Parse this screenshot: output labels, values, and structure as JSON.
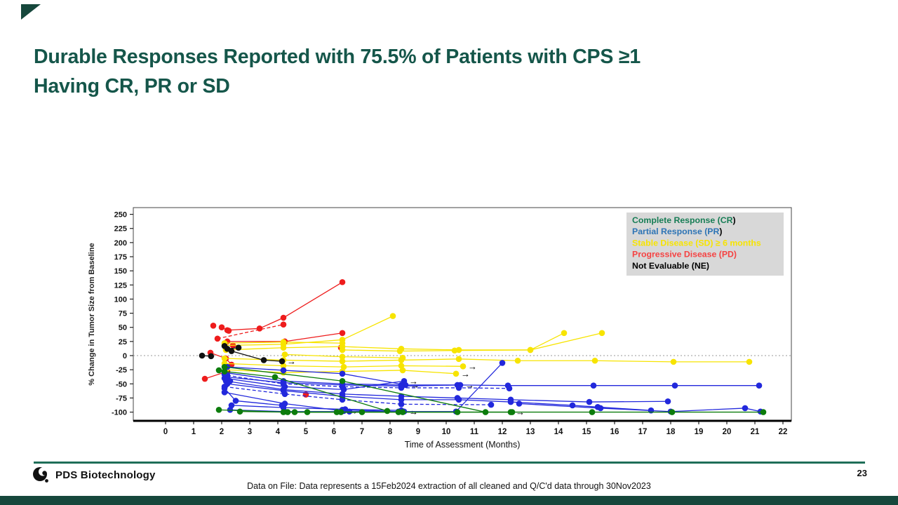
{
  "slide": {
    "title_lines": [
      "Durable Responses Reported with 75.5% of Patients with CPS ≥1",
      "Having CR, PR or SD"
    ],
    "title_color": "#15564a",
    "logo_text": "PDS Biotechnology",
    "footnote": "Data on File: Data represents a 15Feb2024 extraction of all cleaned and Q/C'd data through 30Nov2023",
    "page_number": "23",
    "accent_color": "#16473c"
  },
  "chart_data": {
    "type": "line",
    "subtype": "spider-plot",
    "title": "",
    "xlabel": "Time of Assessment (Months)",
    "ylabel": "% Change in Tumor Size from Baseline",
    "xlim": [
      0,
      22
    ],
    "xstep": 1,
    "ylim": [
      -100,
      250
    ],
    "ystep": 25,
    "zero_reference_line": true,
    "grid": false,
    "legend": {
      "position": "top-right",
      "bg": "#d8d8d8",
      "entries": [
        {
          "label": "Complete Response (CR",
          "suffix": ")",
          "color": "#177d55"
        },
        {
          "label": "Partial Response (PR",
          "suffix": ")",
          "color": "#2d74b5"
        },
        {
          "label": "Stable Disease (SD) ≥ 6 months",
          "suffix": "",
          "color": "#f7e400"
        },
        {
          "label": "Progressive Disease (PD)",
          "suffix": "",
          "color": "#f54242"
        },
        {
          "label": "Not Evaluable (NE)",
          "suffix": "",
          "color": "#000000"
        }
      ]
    },
    "colors": {
      "CR": "#0c7c0c",
      "PR": "#2228dc",
      "SD": "#f7e400",
      "PD": "#ee1c1c",
      "NE": "#101010"
    },
    "series": [
      {
        "id": "PD-1",
        "response": "PD",
        "points": [
          [
            2.2,
            45
          ],
          [
            3.35,
            48
          ],
          [
            4.2,
            67
          ],
          [
            6.3,
            130
          ]
        ]
      },
      {
        "id": "PD-2",
        "response": "PD",
        "dash": true,
        "points": [
          [
            1.85,
            30
          ],
          [
            4.2,
            55
          ]
        ]
      },
      {
        "id": "PD-3",
        "response": "PD",
        "points": [
          [
            2.2,
            25
          ],
          [
            4.25,
            25
          ],
          [
            6.3,
            40
          ]
        ]
      },
      {
        "id": "PD-4",
        "response": "PD",
        "points": [
          [
            2.0,
            50
          ],
          [
            2.25,
            44
          ]
        ]
      },
      {
        "id": "PD-5",
        "response": "PD",
        "points": [
          [
            1.7,
            53
          ]
        ]
      },
      {
        "id": "PD-6",
        "response": "PD",
        "points": [
          [
            1.6,
            5
          ],
          [
            2.15,
            -5
          ],
          [
            2.35,
            -16
          ]
        ]
      },
      {
        "id": "PD-7",
        "response": "PD",
        "points": [
          [
            1.4,
            -41
          ],
          [
            2.2,
            -28
          ]
        ]
      },
      {
        "id": "PD-8",
        "response": "PD",
        "points": [
          [
            6.25,
            14
          ]
        ]
      },
      {
        "id": "PD-9",
        "response": "PD",
        "points": [
          [
            5.0,
            -69
          ]
        ]
      },
      {
        "id": "PD-10",
        "response": "PD",
        "points": [
          [
            2.4,
            18
          ]
        ]
      },
      {
        "id": "SD-1",
        "response": "SD",
        "points": [
          [
            2.1,
            18
          ],
          [
            4.2,
            20
          ],
          [
            6.3,
            28
          ],
          [
            8.1,
            70
          ]
        ]
      },
      {
        "id": "SD-2",
        "response": "SD",
        "points": [
          [
            2.15,
            10
          ],
          [
            4.2,
            14
          ],
          [
            6.3,
            16
          ],
          [
            8.4,
            12
          ],
          [
            10.45,
            10
          ],
          [
            13.0,
            10
          ],
          [
            14.2,
            40
          ]
        ]
      },
      {
        "id": "SD-3",
        "response": "SD",
        "points": [
          [
            6.3,
            10
          ],
          [
            8.35,
            8
          ],
          [
            10.3,
            9
          ],
          [
            13.0,
            10
          ],
          [
            15.55,
            40
          ]
        ]
      },
      {
        "id": "SD-4",
        "response": "SD",
        "points": [
          [
            2.1,
            -5
          ],
          [
            4.2,
            -8
          ],
          [
            6.3,
            -10
          ],
          [
            8.4,
            -8
          ],
          [
            10.45,
            -6
          ],
          [
            12.55,
            -9
          ],
          [
            15.3,
            -9
          ],
          [
            18.1,
            -11
          ],
          [
            20.8,
            -11
          ]
        ]
      },
      {
        "id": "SD-5",
        "response": "SD",
        "arrow": true,
        "points": [
          [
            2.1,
            -14
          ],
          [
            4.2,
            -18
          ],
          [
            6.35,
            -20
          ],
          [
            8.4,
            -18
          ],
          [
            10.6,
            -19
          ]
        ]
      },
      {
        "id": "SD-6",
        "response": "SD",
        "arrow": true,
        "points": [
          [
            2.15,
            -25
          ],
          [
            4.2,
            -30
          ],
          [
            6.3,
            -28
          ],
          [
            8.45,
            -26
          ],
          [
            10.35,
            -32
          ]
        ]
      },
      {
        "id": "SD-7",
        "response": "SD",
        "points": [
          [
            2.1,
            22
          ],
          [
            4.2,
            24
          ],
          [
            6.3,
            22
          ]
        ]
      },
      {
        "id": "SD-8",
        "response": "SD",
        "points": [
          [
            4.25,
            2
          ],
          [
            6.3,
            -2
          ],
          [
            8.45,
            -4
          ]
        ]
      },
      {
        "id": "PR-1",
        "response": "PR",
        "points": [
          [
            2.1,
            -30
          ],
          [
            4.2,
            -45
          ],
          [
            6.3,
            -50
          ],
          [
            8.4,
            -52
          ],
          [
            10.4,
            -52
          ],
          [
            12.2,
            -53
          ],
          [
            15.25,
            -53
          ],
          [
            18.15,
            -53
          ],
          [
            21.15,
            -53
          ]
        ]
      },
      {
        "id": "PR-2",
        "response": "PR",
        "dash": true,
        "points": [
          [
            2.2,
            -35
          ],
          [
            4.2,
            -50
          ],
          [
            6.3,
            -55
          ],
          [
            8.4,
            -57
          ],
          [
            10.45,
            -57
          ],
          [
            12.25,
            -58
          ]
        ]
      },
      {
        "id": "PR-3",
        "response": "PR",
        "arrow": true,
        "points": [
          [
            2.1,
            -40
          ],
          [
            4.25,
            -55
          ],
          [
            6.35,
            -60
          ],
          [
            8.5,
            -45
          ]
        ]
      },
      {
        "id": "PR-4",
        "response": "PR",
        "points": [
          [
            2.15,
            -45
          ],
          [
            4.2,
            -60
          ],
          [
            6.3,
            -68
          ],
          [
            8.4,
            -72
          ],
          [
            10.4,
            -75
          ],
          [
            12.3,
            -78
          ],
          [
            15.1,
            -82
          ],
          [
            17.9,
            -81
          ]
        ]
      },
      {
        "id": "PR-5",
        "response": "PR",
        "points": [
          [
            2.2,
            -50
          ],
          [
            4.2,
            -62
          ],
          [
            6.3,
            -72
          ],
          [
            8.4,
            -78
          ],
          [
            10.45,
            -78
          ],
          [
            12.3,
            -82
          ],
          [
            14.5,
            -88
          ],
          [
            15.4,
            -91
          ],
          [
            17.3,
            -97
          ]
        ]
      },
      {
        "id": "PR-6",
        "response": "PR",
        "dash": true,
        "points": [
          [
            2.1,
            -55
          ],
          [
            4.25,
            -68
          ],
          [
            6.3,
            -78
          ],
          [
            8.4,
            -86
          ],
          [
            11.6,
            -87
          ]
        ]
      },
      {
        "id": "PR-7",
        "response": "PR",
        "arrow": true,
        "points": [
          [
            2.35,
            -88
          ],
          [
            4.2,
            -92
          ],
          [
            6.4,
            -95
          ],
          [
            8.4,
            -97
          ]
        ]
      },
      {
        "id": "PR-8",
        "response": "PR",
        "points": [
          [
            6.3,
            -96
          ],
          [
            8.3,
            -99
          ],
          [
            10.35,
            -99
          ],
          [
            12.0,
            -13
          ]
        ]
      },
      {
        "id": "PR-9",
        "response": "PR",
        "arrow": true,
        "points": [
          [
            2.1,
            -65
          ],
          [
            4.25,
            -85
          ],
          [
            6.35,
            -98
          ]
        ]
      },
      {
        "id": "PR-10",
        "response": "PR",
        "arrow": true,
        "points": [
          [
            2.2,
            -20
          ],
          [
            4.2,
            -26
          ],
          [
            6.3,
            -32
          ],
          [
            8.55,
            -52
          ]
        ]
      },
      {
        "id": "PR-11",
        "response": "PR",
        "points": [
          [
            2.1,
            -58
          ],
          [
            2.5,
            -80
          ],
          [
            4.15,
            -88
          ]
        ]
      },
      {
        "id": "PR-12",
        "response": "PR",
        "arrow": true,
        "points": [
          [
            2.3,
            -96
          ],
          [
            4.25,
            -99
          ],
          [
            6.55,
            -99
          ],
          [
            8.5,
            -99
          ]
        ]
      },
      {
        "id": "PR-13",
        "response": "PR",
        "points": [
          [
            12.6,
            -85
          ],
          [
            15.5,
            -93
          ],
          [
            18.0,
            -99
          ],
          [
            20.65,
            -93
          ],
          [
            21.2,
            -99
          ]
        ]
      },
      {
        "id": "PR-14",
        "response": "PR",
        "arrow": true,
        "points": [
          [
            2.2,
            -38
          ],
          [
            4.2,
            -48
          ],
          [
            6.3,
            -52
          ],
          [
            8.4,
            -54
          ],
          [
            10.5,
            -52
          ]
        ]
      },
      {
        "id": "PR-15",
        "response": "PR",
        "points": [
          [
            2.1,
            -33
          ],
          [
            2.3,
            -45
          ]
        ]
      },
      {
        "id": "CR-1",
        "response": "CR",
        "arrow": true,
        "points": [
          [
            1.9,
            -96
          ],
          [
            4.2,
            -100
          ],
          [
            6.1,
            -100
          ],
          [
            8.3,
            -100
          ],
          [
            10.4,
            -100
          ],
          [
            12.3,
            -100
          ]
        ]
      },
      {
        "id": "CR-2",
        "response": "CR",
        "points": [
          [
            2.65,
            -99
          ],
          [
            4.35,
            -100
          ],
          [
            6.25,
            -100
          ],
          [
            8.45,
            -100
          ],
          [
            12.35,
            -100
          ],
          [
            15.2,
            -100
          ],
          [
            18.05,
            -100
          ],
          [
            21.3,
            -100
          ]
        ]
      },
      {
        "id": "CR-3",
        "response": "CR",
        "points": [
          [
            2.1,
            -28
          ],
          [
            3.9,
            -38
          ],
          [
            7.9,
            -98
          ]
        ]
      },
      {
        "id": "CR-4",
        "response": "CR",
        "points": [
          [
            2.1,
            -20
          ],
          [
            6.3,
            -45
          ],
          [
            11.4,
            -100
          ]
        ]
      },
      {
        "id": "CR-5",
        "response": "CR",
        "points": [
          [
            4.6,
            -100
          ],
          [
            5.05,
            -100
          ],
          [
            7.0,
            -100
          ]
        ]
      },
      {
        "id": "CR-6",
        "response": "CR",
        "points": [
          [
            1.9,
            -26
          ]
        ]
      },
      {
        "id": "NE-1",
        "response": "NE",
        "points": [
          [
            1.3,
            0
          ],
          [
            1.62,
            -1
          ]
        ]
      },
      {
        "id": "NE-2",
        "response": "NE",
        "arrow": true,
        "points": [
          [
            2.1,
            17
          ],
          [
            2.35,
            8
          ],
          [
            3.5,
            -8
          ],
          [
            4.15,
            -10
          ]
        ]
      },
      {
        "id": "NE-3",
        "response": "NE",
        "points": [
          [
            2.2,
            12
          ],
          [
            2.6,
            14
          ]
        ]
      }
    ]
  }
}
